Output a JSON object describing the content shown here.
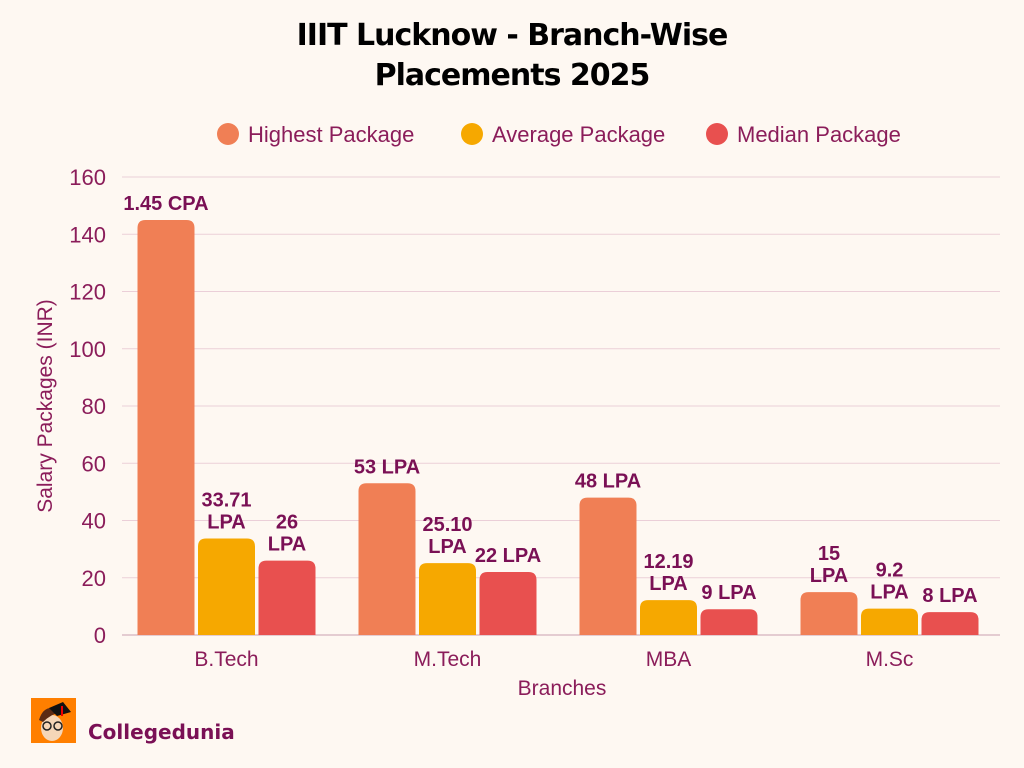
{
  "chart_data": {
    "type": "bar",
    "title_line1": "IIIT Lucknow -  Branch-Wise",
    "title_line2": "Placements 2025",
    "xlabel": "Branches",
    "ylabel": "Salary Packages (INR)",
    "ylim": [
      0,
      160
    ],
    "yticks": [
      0,
      20,
      40,
      60,
      80,
      100,
      120,
      140,
      160
    ],
    "grid": true,
    "legend_position": "top",
    "categories": [
      "B.Tech",
      "M.Tech",
      "MBA",
      "M.Sc"
    ],
    "series": [
      {
        "name": "Highest Package",
        "color": "#F07F55",
        "values": [
          145,
          53,
          48,
          15
        ],
        "labels": [
          "1.45 CPA",
          "53 LPA",
          "48 LPA",
          "15\nLPA"
        ]
      },
      {
        "name": "Average Package",
        "color": "#F6A800",
        "values": [
          33.71,
          25.1,
          12.19,
          9.2
        ],
        "labels": [
          "33.71\nLPA",
          "25.10\nLPA",
          "12.19\nLPA",
          "9.2\nLPA"
        ]
      },
      {
        "name": "Median Package",
        "color": "#E8504F",
        "values": [
          26,
          22,
          9,
          8
        ],
        "labels": [
          "26\nLPA",
          "22 LPA",
          "9 LPA",
          "8 LPA"
        ]
      }
    ]
  },
  "brand": {
    "name": "Collegedunia"
  }
}
